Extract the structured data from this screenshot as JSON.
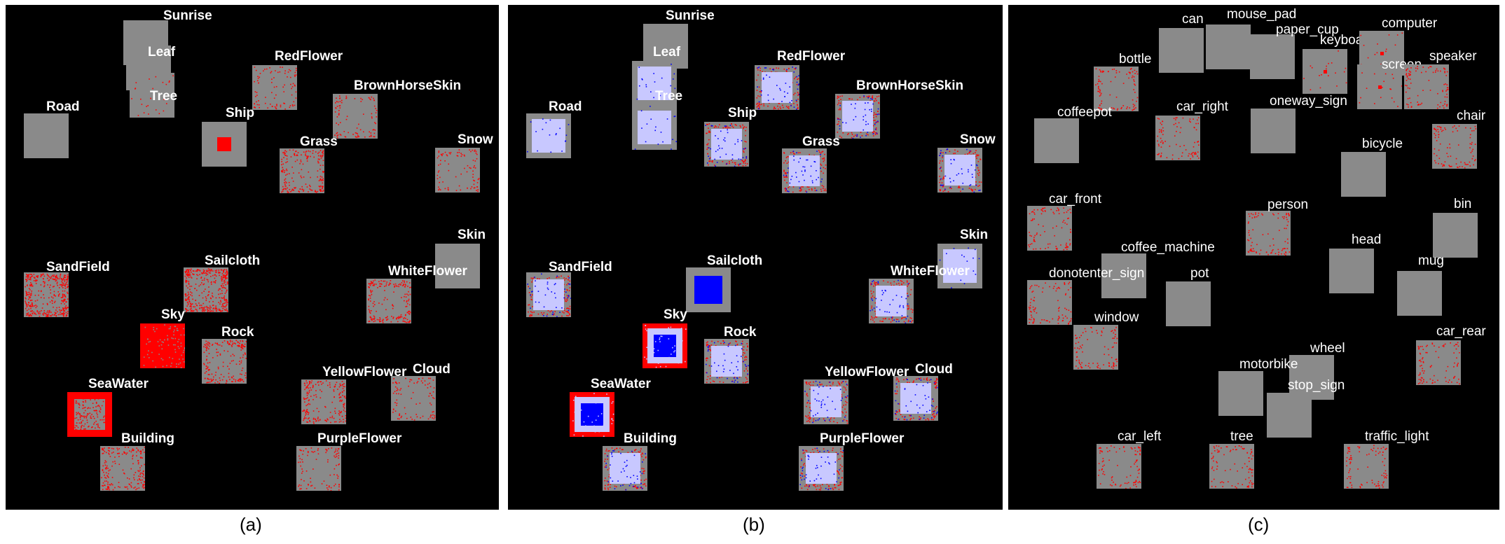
{
  "colors": {
    "background": "#000000",
    "patch_gray": "#8a8a8a",
    "positive": "#ff0000",
    "query": "#0000ff",
    "query_light": "#c8c8ff",
    "label": "#ffffff"
  },
  "panels": [
    {
      "caption": "(a)",
      "patches": [
        {
          "label": "Sunrise",
          "style": "gray"
        },
        {
          "label": "Leaf",
          "style": "gray"
        },
        {
          "label": "Tree",
          "style": "gray-sparse"
        },
        {
          "label": "RedFlower",
          "style": "sparse"
        },
        {
          "label": "BrownHorseSkin",
          "style": "sparse"
        },
        {
          "label": "Road",
          "style": "gray"
        },
        {
          "label": "Ship",
          "style": "center-red"
        },
        {
          "label": "Grass",
          "style": "medium"
        },
        {
          "label": "Snow",
          "style": "sparse"
        },
        {
          "label": "Skin",
          "style": "gray"
        },
        {
          "label": "SandField",
          "style": "dense"
        },
        {
          "label": "Sailcloth",
          "style": "dense"
        },
        {
          "label": "WhiteFlower",
          "style": "medium"
        },
        {
          "label": "Sky",
          "style": "full-red"
        },
        {
          "label": "Rock",
          "style": "medium"
        },
        {
          "label": "SeaWater",
          "style": "very-dense"
        },
        {
          "label": "YellowFlower",
          "style": "medium"
        },
        {
          "label": "Cloud",
          "style": "sparse"
        },
        {
          "label": "Building",
          "style": "medium"
        },
        {
          "label": "PurpleFlower",
          "style": "sparse"
        }
      ]
    },
    {
      "caption": "(b)",
      "patches": [
        {
          "label": "Sunrise",
          "style": "gray"
        },
        {
          "label": "Leaf",
          "style": "light"
        },
        {
          "label": "Tree",
          "style": "light"
        },
        {
          "label": "RedFlower",
          "style": "light-red"
        },
        {
          "label": "BrownHorseSkin",
          "style": "light-red"
        },
        {
          "label": "Road",
          "style": "light"
        },
        {
          "label": "Ship",
          "style": "light-red"
        },
        {
          "label": "Grass",
          "style": "light-red"
        },
        {
          "label": "Snow",
          "style": "light-red"
        },
        {
          "label": "Skin",
          "style": "light"
        },
        {
          "label": "SandField",
          "style": "light-red"
        },
        {
          "label": "Sailcloth",
          "style": "blue"
        },
        {
          "label": "WhiteFlower",
          "style": "light-red"
        },
        {
          "label": "Sky",
          "style": "blue-red"
        },
        {
          "label": "Rock",
          "style": "light-red"
        },
        {
          "label": "SeaWater",
          "style": "blue-red"
        },
        {
          "label": "YellowFlower",
          "style": "light-red"
        },
        {
          "label": "Cloud",
          "style": "light-red"
        },
        {
          "label": "Building",
          "style": "light-red"
        },
        {
          "label": "PurpleFlower",
          "style": "light-red"
        }
      ]
    },
    {
      "caption": "(c)",
      "patches": [
        {
          "label": "can",
          "style": "gray"
        },
        {
          "label": "mouse_pad",
          "style": "gray"
        },
        {
          "label": "paper_cup",
          "style": "gray"
        },
        {
          "label": "keyboard",
          "style": "gray-dot"
        },
        {
          "label": "computer",
          "style": "gray-dot"
        },
        {
          "label": "screen",
          "style": "gray-dot"
        },
        {
          "label": "bottle",
          "style": "sparse"
        },
        {
          "label": "speaker",
          "style": "sparse"
        },
        {
          "label": "coffeepot",
          "style": "gray"
        },
        {
          "label": "car_right",
          "style": "sparse"
        },
        {
          "label": "oneway_sign",
          "style": "gray"
        },
        {
          "label": "chair",
          "style": "sparse"
        },
        {
          "label": "bicycle",
          "style": "gray"
        },
        {
          "label": "car_front",
          "style": "sparse"
        },
        {
          "label": "person",
          "style": "sparse"
        },
        {
          "label": "bin",
          "style": "gray"
        },
        {
          "label": "coffee_machine",
          "style": "gray"
        },
        {
          "label": "head",
          "style": "gray"
        },
        {
          "label": "donotenter_sign",
          "style": "sparse"
        },
        {
          "label": "pot",
          "style": "gray"
        },
        {
          "label": "mug",
          "style": "gray"
        },
        {
          "label": "window",
          "style": "sparse"
        },
        {
          "label": "car_rear",
          "style": "sparse"
        },
        {
          "label": "wheel",
          "style": "gray"
        },
        {
          "label": "motorbike",
          "style": "gray"
        },
        {
          "label": "stop_sign",
          "style": "gray"
        },
        {
          "label": "car_left",
          "style": "sparse"
        },
        {
          "label": "tree",
          "style": "sparse"
        },
        {
          "label": "traffic_light",
          "style": "sparse"
        }
      ]
    }
  ]
}
